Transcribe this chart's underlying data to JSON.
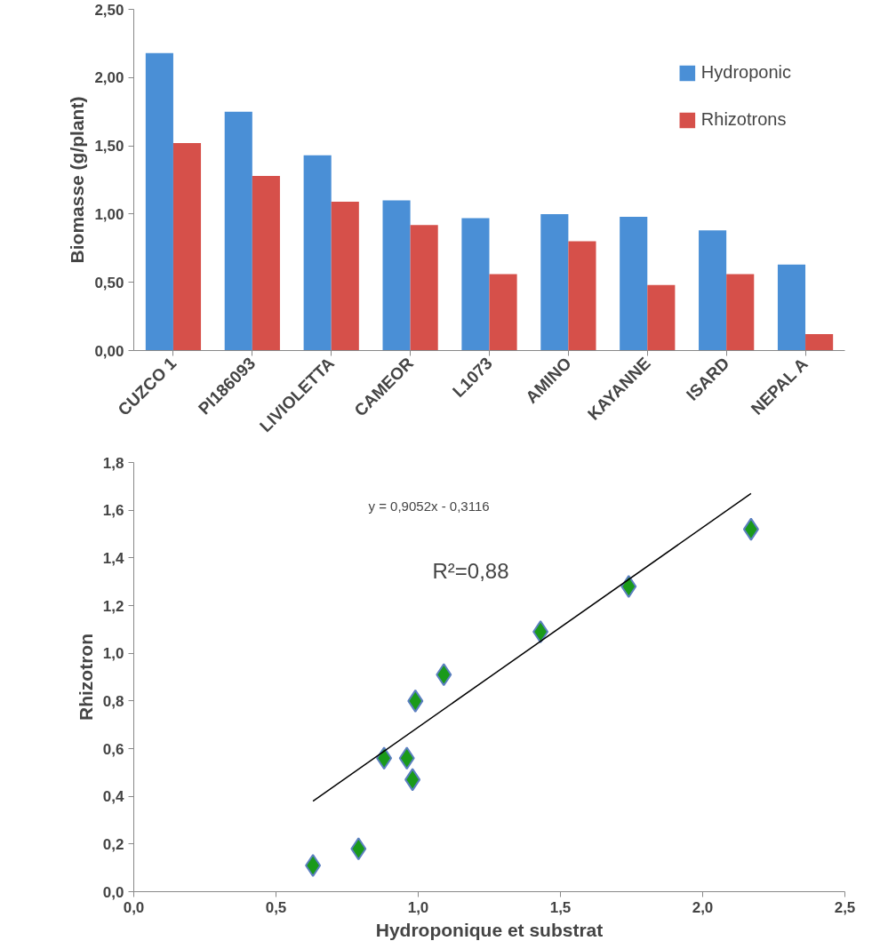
{
  "chart_data": [
    {
      "type": "bar",
      "ylabel": "Biomasse (g/plant)",
      "categories": [
        "CUZCO 1",
        "PI186093",
        "LIVIOLETTA",
        "CAMEOR",
        "L1073",
        "AMINO",
        "KAYANNE",
        "ISARD",
        "NEPAL A"
      ],
      "series": [
        {
          "name": "Hydroponic",
          "color": "#4a8fd6",
          "values": [
            2.18,
            1.75,
            1.43,
            1.1,
            0.97,
            1.0,
            0.98,
            0.88,
            0.63
          ]
        },
        {
          "name": "Rhizotrons",
          "color": "#d6504a",
          "values": [
            1.52,
            1.28,
            1.09,
            0.92,
            0.56,
            0.8,
            0.48,
            0.56,
            0.12
          ]
        }
      ],
      "ylim": [
        0,
        2.5
      ],
      "yticks": [
        {
          "value": 0,
          "label": "0,00"
        },
        {
          "value": 0.5,
          "label": "0,50"
        },
        {
          "value": 1,
          "label": "1,00"
        },
        {
          "value": 1.5,
          "label": "1,50"
        },
        {
          "value": 2,
          "label": "2,00"
        },
        {
          "value": 2.5,
          "label": "2,50"
        }
      ],
      "legend": "top right",
      "grid": false
    },
    {
      "type": "scatter",
      "xlabel": "Hydroponique et substrat",
      "ylabel": "Rhizotron",
      "series": [
        {
          "type": "scatter",
          "color": "#1a9a1a",
          "marker": "diamond",
          "x": [
            0.63,
            0.79,
            0.88,
            0.96,
            0.98,
            0.99,
            1.09,
            1.43,
            1.74,
            2.17
          ],
          "values": [
            0.11,
            0.18,
            0.56,
            0.56,
            0.47,
            0.8,
            0.91,
            1.09,
            1.28,
            1.52
          ]
        },
        {
          "type": "line",
          "color": "#000000",
          "x": [
            0.63,
            2.17
          ],
          "values": [
            0.38,
            1.67
          ]
        }
      ],
      "xlim": [
        0,
        2.5
      ],
      "xticks": [
        {
          "value": 0,
          "label": "0,0"
        },
        {
          "value": 0.5,
          "label": "0,5"
        },
        {
          "value": 1,
          "label": "1,0"
        },
        {
          "value": 1.5,
          "label": "1,5"
        },
        {
          "value": 2,
          "label": "2,0"
        },
        {
          "value": 2.5,
          "label": "2,5"
        }
      ],
      "ylim": [
        0,
        1.8
      ],
      "yticks": [
        {
          "value": 0,
          "label": "0,0"
        },
        {
          "value": 0.2,
          "label": "0,2"
        },
        {
          "value": 0.4,
          "label": "0,4"
        },
        {
          "value": 0.6,
          "label": "0,6"
        },
        {
          "value": 0.8,
          "label": "0,8"
        },
        {
          "value": 1,
          "label": "1,0"
        },
        {
          "value": 1.2,
          "label": "1,2"
        },
        {
          "value": 1.4,
          "label": "1,4"
        },
        {
          "value": 1.6,
          "label": "1,6"
        },
        {
          "value": 1.8,
          "label": "1,8"
        }
      ],
      "annotations": [
        "y = 0,9052x - 0,3116",
        "R²=0,88"
      ],
      "grid": false
    }
  ]
}
